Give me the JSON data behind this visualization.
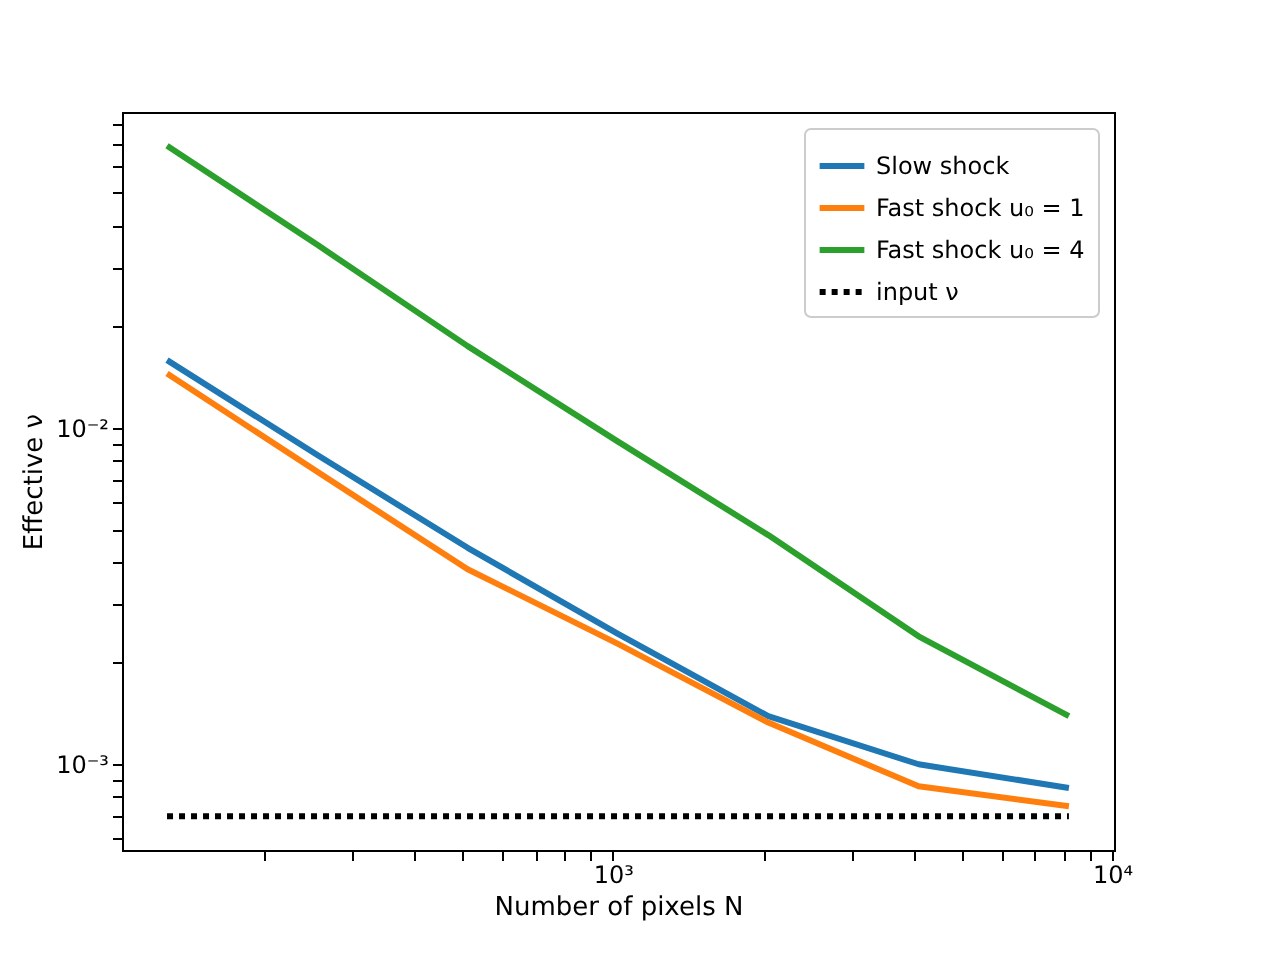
{
  "chart_data": {
    "type": "line",
    "xlabel": "Number of pixels N",
    "ylabel": "Effective ν",
    "log": "xy",
    "grid": false,
    "legend": "top right",
    "marker": "none",
    "x": [
      128,
      256,
      512,
      1024,
      2048,
      4096,
      8192
    ],
    "series": [
      {
        "name": "Slow shock",
        "color": "#1f77b4",
        "line_style": "solid",
        "values": [
          0.0159,
          0.0083,
          0.0044,
          0.00244,
          0.00139,
          0.001,
          0.00085
        ]
      },
      {
        "name": "Fast shock u₀ = 1",
        "color": "#ff7f0e",
        "line_style": "solid",
        "values": [
          0.0145,
          0.0074,
          0.0038,
          0.00228,
          0.00133,
          0.00086,
          0.00075
        ]
      },
      {
        "name": "Fast shock u₀ = 4",
        "color": "#2ca02c",
        "line_style": "solid",
        "values": [
          0.069,
          0.035,
          0.0175,
          0.0091,
          0.0048,
          0.0024,
          0.00139
        ]
      },
      {
        "name": "input ν",
        "color": "#000000",
        "line_style": "dotted",
        "values": [
          0.0007,
          0.0007,
          0.0007,
          0.0007,
          0.0007,
          0.0007,
          0.0007
        ]
      }
    ],
    "xlim": [
      104,
      10085
    ],
    "ylim": [
      0.000556,
      0.0869
    ],
    "xticks": [
      {
        "value": 200,
        "label": null
      },
      {
        "value": 300,
        "label": null
      },
      {
        "value": 400,
        "label": null
      },
      {
        "value": 500,
        "label": null
      },
      {
        "value": 600,
        "label": null
      },
      {
        "value": 700,
        "label": null
      },
      {
        "value": 800,
        "label": null
      },
      {
        "value": 900,
        "label": null
      },
      {
        "value": 1000,
        "label": "10³"
      },
      {
        "value": 2000,
        "label": null
      },
      {
        "value": 3000,
        "label": null
      },
      {
        "value": 4000,
        "label": null
      },
      {
        "value": 5000,
        "label": null
      },
      {
        "value": 6000,
        "label": null
      },
      {
        "value": 7000,
        "label": null
      },
      {
        "value": 8000,
        "label": null
      },
      {
        "value": 9000,
        "label": null
      },
      {
        "value": 10000,
        "label": "10⁴"
      }
    ],
    "yticks": [
      {
        "value": 0.0006,
        "label": null
      },
      {
        "value": 0.0007,
        "label": null
      },
      {
        "value": 0.0008,
        "label": null
      },
      {
        "value": 0.0009,
        "label": null
      },
      {
        "value": 0.001,
        "label": "10⁻³"
      },
      {
        "value": 0.002,
        "label": null
      },
      {
        "value": 0.003,
        "label": null
      },
      {
        "value": 0.004,
        "label": null
      },
      {
        "value": 0.005,
        "label": null
      },
      {
        "value": 0.006,
        "label": null
      },
      {
        "value": 0.007,
        "label": null
      },
      {
        "value": 0.008,
        "label": null
      },
      {
        "value": 0.009,
        "label": null
      },
      {
        "value": 0.01,
        "label": "10⁻²"
      },
      {
        "value": 0.02,
        "label": null
      },
      {
        "value": 0.03,
        "label": null
      },
      {
        "value": 0.04,
        "label": null
      },
      {
        "value": 0.05,
        "label": null
      },
      {
        "value": 0.06,
        "label": null
      },
      {
        "value": 0.07,
        "label": null
      },
      {
        "value": 0.08,
        "label": null
      }
    ]
  }
}
